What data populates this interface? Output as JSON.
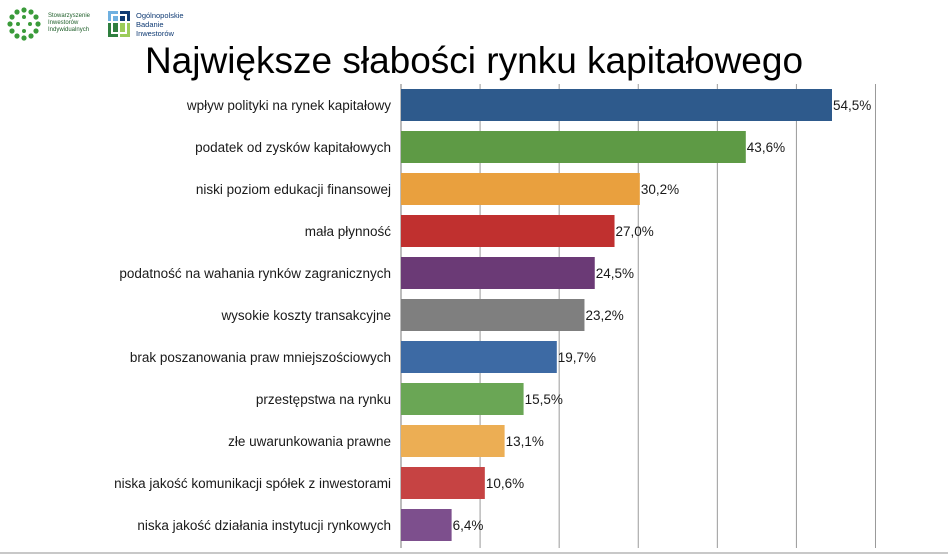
{
  "header": {
    "logo_left_text": [
      "Stowarzyszenie",
      "Inwestorów",
      "Indywidualnych"
    ],
    "logo_right_text": [
      "Ogólnopolskie",
      "Badanie",
      "Inwestorów"
    ]
  },
  "title": "Największe słabości rynku kapitałowego",
  "colors": {
    "blue": "#2e5a8c",
    "green": "#5e9a45",
    "orange": "#e9a03e",
    "red": "#c0302f",
    "purple": "#6b3a76",
    "gray": "#7f7f7f",
    "blue2": "#3d6aa4",
    "green2": "#6aa655",
    "orange2": "#ecae54",
    "red2": "#c64343",
    "purple2": "#7d4f8d"
  },
  "chart_data": {
    "type": "bar",
    "orientation": "horizontal",
    "title": "Największe słabości rynku kapitałowego",
    "categories": [
      "wpływ polityki na rynek kapitałowy",
      "podatek od zysków kapitałowych",
      "niski poziom edukacji finansowej",
      "mała płynność",
      "podatność na wahania rynków zagranicznych",
      "wysokie koszty transakcyjne",
      "brak poszanowania praw mniejszościowych",
      "przestępstwa na rynku",
      "złe uwarunkowania prawne",
      "niska jakość komunikacji spółek z inwestorami",
      "niska jakość działania instytucji rynkowych"
    ],
    "values": [
      54.5,
      43.6,
      30.2,
      27.0,
      24.5,
      23.2,
      19.7,
      15.5,
      13.1,
      10.6,
      6.4
    ],
    "value_labels": [
      "54,5%",
      "43,6%",
      "30,2%",
      "27,0%",
      "24,5%",
      "23,2%",
      "19,7%",
      "15,5%",
      "13,1%",
      "10,6%",
      "6,4%"
    ],
    "bar_colors": [
      "#2e5a8c",
      "#5e9a45",
      "#e9a03e",
      "#c0302f",
      "#6b3a76",
      "#7f7f7f",
      "#3d6aa4",
      "#6aa655",
      "#ecae54",
      "#c64343",
      "#7d4f8d"
    ],
    "xlim": [
      0,
      60
    ],
    "grid": true,
    "xlabel": "",
    "ylabel": ""
  }
}
